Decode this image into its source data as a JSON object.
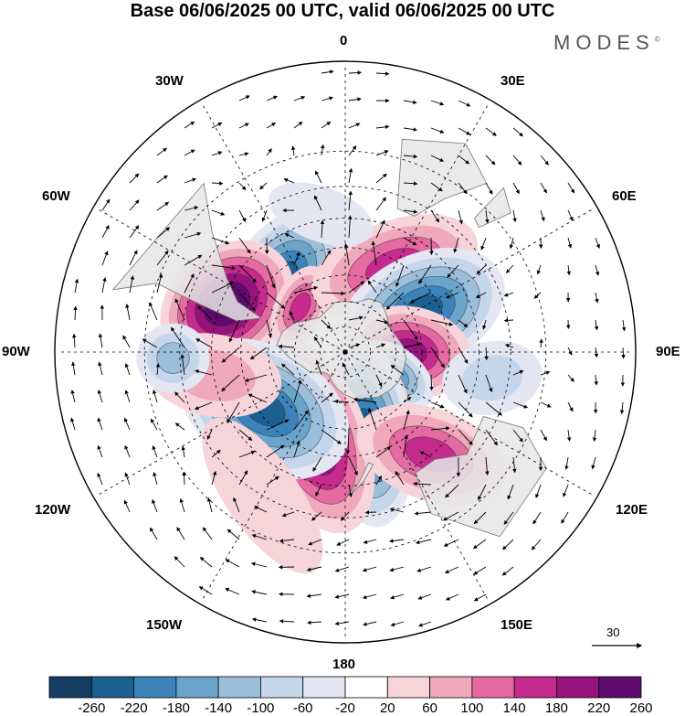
{
  "title": "Base 06/06/2025 00 UTC, valid 06/06/2025 00 UTC",
  "brand": "MODES",
  "brand_mark": "©",
  "longitude_labels": {
    "top": "0",
    "bottom": "180",
    "left": "90W",
    "right": "90E",
    "top_left_1": "30W",
    "top_left_2": "60W",
    "top_right_1": "30E",
    "top_right_2": "60E",
    "bottom_left_1": "120W",
    "bottom_left_2": "150W",
    "bottom_right_1": "120E",
    "bottom_right_2": "150E"
  },
  "vector_scale_label": "30",
  "colorbar": {
    "ticks": [
      "-260",
      "-220",
      "-180",
      "-140",
      "-100",
      "-60",
      "-20",
      "20",
      "60",
      "100",
      "140",
      "180",
      "220",
      "260"
    ],
    "colors": [
      "#143f63",
      "#1c5f91",
      "#3b83b8",
      "#6aa4cb",
      "#9bbfdb",
      "#c6d6ea",
      "#e4e6f2",
      "#ffffff",
      "#f7d4d9",
      "#f0a8bd",
      "#e46aa1",
      "#c42b8c",
      "#96137d",
      "#5e0a6f"
    ]
  },
  "map": {
    "projection": "south polar stereographic",
    "landmask_color": "#e6e6e6",
    "features": [
      {
        "kind": "neg",
        "lon": -40,
        "lat": -53,
        "a": 85,
        "b": 55,
        "rot": -55,
        "val": -230
      },
      {
        "kind": "pos",
        "lon": -68,
        "lat": -42,
        "a": 80,
        "b": 62,
        "rot": -40,
        "val": 260
      },
      {
        "kind": "pos",
        "lon": -45,
        "lat": -65,
        "a": 48,
        "b": 28,
        "rot": -65,
        "val": 150
      },
      {
        "kind": "neg",
        "lon": 2,
        "lat": -62,
        "a": 38,
        "b": 26,
        "rot": 80,
        "val": -70
      },
      {
        "kind": "pos",
        "lon": 30,
        "lat": -52,
        "a": 95,
        "b": 50,
        "rot": -20,
        "val": 160
      },
      {
        "kind": "neg",
        "lon": 62,
        "lat": -56,
        "a": 95,
        "b": 62,
        "rot": -25,
        "val": -230
      },
      {
        "kind": "pos",
        "lon": 90,
        "lat": -65,
        "a": 70,
        "b": 50,
        "rot": 10,
        "val": 210
      },
      {
        "kind": "neg",
        "lon": 115,
        "lat": -68,
        "a": 48,
        "b": 30,
        "rot": 40,
        "val": -160
      },
      {
        "kind": "pos",
        "lon": 140,
        "lat": -70,
        "a": 50,
        "b": 28,
        "rot": 60,
        "val": 140
      },
      {
        "kind": "neg",
        "lon": 165,
        "lat": -58,
        "a": 105,
        "b": 50,
        "rot": 82,
        "val": -250
      },
      {
        "kind": "pos",
        "lon": -160,
        "lat": -55,
        "a": 110,
        "b": 58,
        "rot": 70,
        "val": 240
      },
      {
        "kind": "neg",
        "lon": -125,
        "lat": -52,
        "a": 100,
        "b": 68,
        "rot": 30,
        "val": -250
      },
      {
        "kind": "pos",
        "lon": 140,
        "lat": -40,
        "a": 85,
        "b": 50,
        "rot": 20,
        "val": 140
      },
      {
        "kind": "pos",
        "lon": -100,
        "lat": -40,
        "a": 75,
        "b": 45,
        "rot": 10,
        "val": 90
      },
      {
        "kind": "neg",
        "lon": -92,
        "lat": -28,
        "a": 40,
        "b": 38,
        "rot": 0,
        "val": -100
      },
      {
        "kind": "pos",
        "lon": -150,
        "lat": -30,
        "a": 100,
        "b": 40,
        "rot": 55,
        "val": 50
      },
      {
        "kind": "neg",
        "lon": 100,
        "lat": -35,
        "a": 55,
        "b": 40,
        "rot": -10,
        "val": -60
      },
      {
        "kind": "neg",
        "lon": -10,
        "lat": -38,
        "a": 60,
        "b": 30,
        "rot": 20,
        "val": -40
      }
    ]
  }
}
